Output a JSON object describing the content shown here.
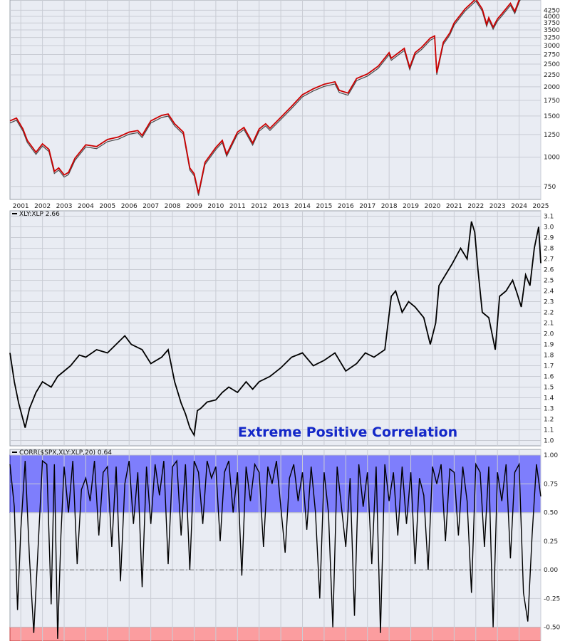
{
  "colors": {
    "background": "#e9ecf3",
    "grid": "#c9ccd4",
    "spx_line": "#cc0000",
    "spx_wick": "#222222",
    "ratio_line": "#000000",
    "corr_line": "#000000",
    "positive_band": "#5a5aff",
    "negative_band": "#ff8a8a",
    "annotation": "#1428c8"
  },
  "chart_data": [
    {
      "type": "line",
      "id": "spx",
      "title": "",
      "log_scale": true,
      "ylim": [
        660,
        4700
      ],
      "y_ticks": [
        "750",
        "1000",
        "1250",
        "1500",
        "1750",
        "2000",
        "2250",
        "2500",
        "2750",
        "3000",
        "3250",
        "3500",
        "3750",
        "4000",
        "4250"
      ],
      "x_ticks": [
        "2001",
        "2002",
        "2003",
        "2004",
        "2005",
        "2006",
        "2007",
        "2008",
        "2009",
        "2010",
        "2011",
        "2012",
        "2013",
        "2014",
        "2015",
        "2016",
        "2017",
        "2018",
        "2019",
        "2020",
        "2021",
        "2022",
        "2023",
        "2024",
        "2025"
      ],
      "xlim": [
        2000.5,
        2025.0
      ],
      "grid": true,
      "series": [
        {
          "x": [
            2000.5,
            2000.8,
            2001.1,
            2001.3,
            2001.7,
            2002.0,
            2002.3,
            2002.55,
            2002.75,
            2003.0,
            2003.2,
            2003.5,
            2004.0,
            2004.5,
            2005.0,
            2005.5,
            2006.0,
            2006.4,
            2006.6,
            2007.0,
            2007.5,
            2007.8,
            2008.1,
            2008.5,
            2008.8,
            2009.0,
            2009.2,
            2009.5,
            2010.0,
            2010.3,
            2010.5,
            2011.0,
            2011.3,
            2011.7,
            2012.0,
            2012.3,
            2012.5,
            2013.0,
            2013.5,
            2014.0,
            2014.5,
            2015.0,
            2015.5,
            2015.7,
            2016.1,
            2016.5,
            2017.0,
            2017.5,
            2018.0,
            2018.1,
            2018.7,
            2018.95,
            2019.2,
            2019.5,
            2019.9,
            2020.1,
            2020.2,
            2020.5,
            2020.8,
            2021.0,
            2021.5,
            2022.0,
            2022.3,
            2022.5,
            2022.6,
            2022.8,
            2023.0,
            2023.2,
            2023.6,
            2023.8,
            2024.0,
            2024.1
          ],
          "y": [
            1430,
            1470,
            1320,
            1180,
            1050,
            1140,
            1080,
            870,
            900,
            840,
            860,
            990,
            1130,
            1110,
            1190,
            1220,
            1280,
            1300,
            1240,
            1430,
            1510,
            1530,
            1390,
            1280,
            900,
            850,
            700,
            950,
            1100,
            1180,
            1030,
            1280,
            1340,
            1150,
            1320,
            1390,
            1330,
            1480,
            1650,
            1850,
            1960,
            2050,
            2100,
            1930,
            1880,
            2170,
            2270,
            2450,
            2800,
            2650,
            2920,
            2420,
            2800,
            2950,
            3230,
            3300,
            2300,
            3100,
            3400,
            3750,
            4300,
            4750,
            4300,
            3700,
            3950,
            3600,
            3900,
            4100,
            4550,
            4200,
            4700,
            4900
          ]
        }
      ]
    },
    {
      "type": "line",
      "id": "ratio",
      "title": "XLY:XLP 2.66",
      "ylim": [
        0.95,
        3.15
      ],
      "y_ticks": [
        "1.0",
        "1.1",
        "1.2",
        "1.3",
        "1.4",
        "1.5",
        "1.6",
        "1.7",
        "1.8",
        "1.9",
        "2.0",
        "2.1",
        "2.2",
        "2.3",
        "2.4",
        "2.5",
        "2.6",
        "2.7",
        "2.8",
        "2.9",
        "3.0",
        "3.1"
      ],
      "xlim": [
        2000.5,
        2025.0
      ],
      "grid": true,
      "annotation": "Extreme Positive Correlation",
      "series": [
        {
          "name": "XLY:XLP",
          "x": [
            2000.5,
            2000.7,
            2000.9,
            2001.2,
            2001.4,
            2001.7,
            2002.0,
            2002.4,
            2002.7,
            2003.0,
            2003.3,
            2003.7,
            2004.0,
            2004.5,
            2005.0,
            2005.4,
            2005.8,
            2006.1,
            2006.6,
            2007.0,
            2007.5,
            2007.8,
            2008.1,
            2008.4,
            2008.6,
            2008.8,
            2009.0,
            2009.15,
            2009.3,
            2009.6,
            2010.0,
            2010.3,
            2010.6,
            2011.0,
            2011.4,
            2011.7,
            2012.0,
            2012.5,
            2013.0,
            2013.5,
            2014.0,
            2014.5,
            2015.0,
            2015.5,
            2016.0,
            2016.5,
            2016.9,
            2017.3,
            2017.8,
            2018.1,
            2018.3,
            2018.6,
            2018.9,
            2019.2,
            2019.6,
            2019.9,
            2020.15,
            2020.3,
            2020.6,
            2020.9,
            2021.3,
            2021.6,
            2021.8,
            2021.95,
            2022.1,
            2022.3,
            2022.6,
            2022.9,
            2023.1,
            2023.4,
            2023.7,
            2023.9,
            2024.1,
            2024.3,
            2024.5,
            2024.7,
            2024.9,
            2025.0
          ],
          "y": [
            1.82,
            1.55,
            1.35,
            1.12,
            1.3,
            1.45,
            1.55,
            1.5,
            1.6,
            1.65,
            1.7,
            1.8,
            1.78,
            1.85,
            1.82,
            1.9,
            1.98,
            1.9,
            1.85,
            1.72,
            1.78,
            1.85,
            1.55,
            1.35,
            1.25,
            1.12,
            1.05,
            1.28,
            1.3,
            1.36,
            1.38,
            1.45,
            1.5,
            1.45,
            1.55,
            1.48,
            1.55,
            1.6,
            1.68,
            1.78,
            1.82,
            1.7,
            1.75,
            1.82,
            1.65,
            1.72,
            1.82,
            1.78,
            1.85,
            2.35,
            2.4,
            2.2,
            2.3,
            2.25,
            2.15,
            1.9,
            2.1,
            2.45,
            2.55,
            2.65,
            2.8,
            2.7,
            3.05,
            2.95,
            2.6,
            2.2,
            2.15,
            1.85,
            2.35,
            2.4,
            2.5,
            2.38,
            2.25,
            2.55,
            2.45,
            2.8,
            3.0,
            2.66
          ]
        }
      ]
    },
    {
      "type": "line",
      "id": "corr",
      "title": "CORR($SPX,XLY:XLP,20) 0.64",
      "ylim": [
        -0.62,
        1.05
      ],
      "y_ticks": [
        "1.00",
        "0.75",
        "0.50",
        "0.25",
        "0.00",
        "-0.25",
        "-0.50"
      ],
      "xlim": [
        2000.5,
        2025.0
      ],
      "grid": true,
      "reference_bands": [
        {
          "from": 0.5,
          "to": 1.0,
          "role": "positive"
        },
        {
          "from": -0.62,
          "to": -0.5,
          "role": "negative"
        }
      ],
      "zero_line": 0.0,
      "series": [
        {
          "name": "CORR($SPX,XLY:XLP,20)",
          "x": [
            2000.5,
            2000.7,
            2000.85,
            2001.0,
            2001.2,
            2001.4,
            2001.6,
            2001.8,
            2002.0,
            2002.2,
            2002.4,
            2002.55,
            2002.7,
            2002.85,
            2003.0,
            2003.2,
            2003.4,
            2003.6,
            2003.8,
            2004.0,
            2004.2,
            2004.4,
            2004.6,
            2004.8,
            2005.0,
            2005.2,
            2005.4,
            2005.6,
            2005.8,
            2006.0,
            2006.2,
            2006.4,
            2006.6,
            2006.8,
            2007.0,
            2007.2,
            2007.4,
            2007.6,
            2007.8,
            2008.0,
            2008.2,
            2008.4,
            2008.6,
            2008.8,
            2009.0,
            2009.2,
            2009.4,
            2009.6,
            2009.8,
            2010.0,
            2010.2,
            2010.4,
            2010.6,
            2010.8,
            2011.0,
            2011.2,
            2011.4,
            2011.6,
            2011.8,
            2012.0,
            2012.2,
            2012.4,
            2012.6,
            2012.8,
            2013.0,
            2013.2,
            2013.4,
            2013.6,
            2013.8,
            2014.0,
            2014.2,
            2014.4,
            2014.6,
            2014.8,
            2015.0,
            2015.2,
            2015.4,
            2015.6,
            2015.8,
            2016.0,
            2016.2,
            2016.4,
            2016.6,
            2016.8,
            2017.0,
            2017.2,
            2017.4,
            2017.6,
            2017.8,
            2018.0,
            2018.2,
            2018.4,
            2018.6,
            2018.8,
            2019.0,
            2019.2,
            2019.4,
            2019.6,
            2019.8,
            2020.0,
            2020.2,
            2020.4,
            2020.6,
            2020.8,
            2021.0,
            2021.2,
            2021.4,
            2021.6,
            2021.8,
            2022.0,
            2022.2,
            2022.4,
            2022.6,
            2022.8,
            2023.0,
            2023.2,
            2023.4,
            2023.6,
            2023.8,
            2024.0,
            2024.2,
            2024.4,
            2024.6,
            2024.8,
            2025.0
          ],
          "y": [
            0.92,
            0.55,
            -0.35,
            0.35,
            0.95,
            0.1,
            -0.55,
            0.2,
            0.95,
            0.92,
            -0.3,
            0.92,
            -0.6,
            0.3,
            0.9,
            0.5,
            0.95,
            0.05,
            0.7,
            0.8,
            0.6,
            0.95,
            0.3,
            0.85,
            0.9,
            0.2,
            0.9,
            -0.1,
            0.75,
            0.95,
            0.4,
            0.85,
            -0.15,
            0.9,
            0.4,
            0.92,
            0.65,
            0.95,
            0.05,
            0.9,
            0.95,
            0.3,
            0.92,
            0.0,
            0.95,
            0.85,
            0.4,
            0.95,
            0.8,
            0.9,
            0.25,
            0.85,
            0.95,
            0.5,
            0.85,
            -0.05,
            0.9,
            0.6,
            0.92,
            0.85,
            0.2,
            0.9,
            0.75,
            0.95,
            0.55,
            0.15,
            0.8,
            0.92,
            0.6,
            0.85,
            0.35,
            0.9,
            0.5,
            -0.25,
            0.85,
            0.5,
            -0.5,
            0.9,
            0.55,
            0.2,
            0.8,
            -0.4,
            0.92,
            0.55,
            0.85,
            0.05,
            0.9,
            -0.55,
            0.92,
            0.6,
            0.85,
            0.3,
            0.9,
            0.4,
            0.85,
            0.05,
            0.8,
            0.65,
            0.0,
            0.9,
            0.75,
            0.92,
            0.25,
            0.88,
            0.85,
            0.3,
            0.9,
            0.6,
            -0.2,
            0.92,
            0.85,
            0.2,
            0.9,
            -0.5,
            0.85,
            0.6,
            0.92,
            0.1,
            0.85,
            0.92,
            -0.2,
            -0.45,
            0.3,
            0.92,
            0.64
          ]
        }
      ]
    }
  ]
}
